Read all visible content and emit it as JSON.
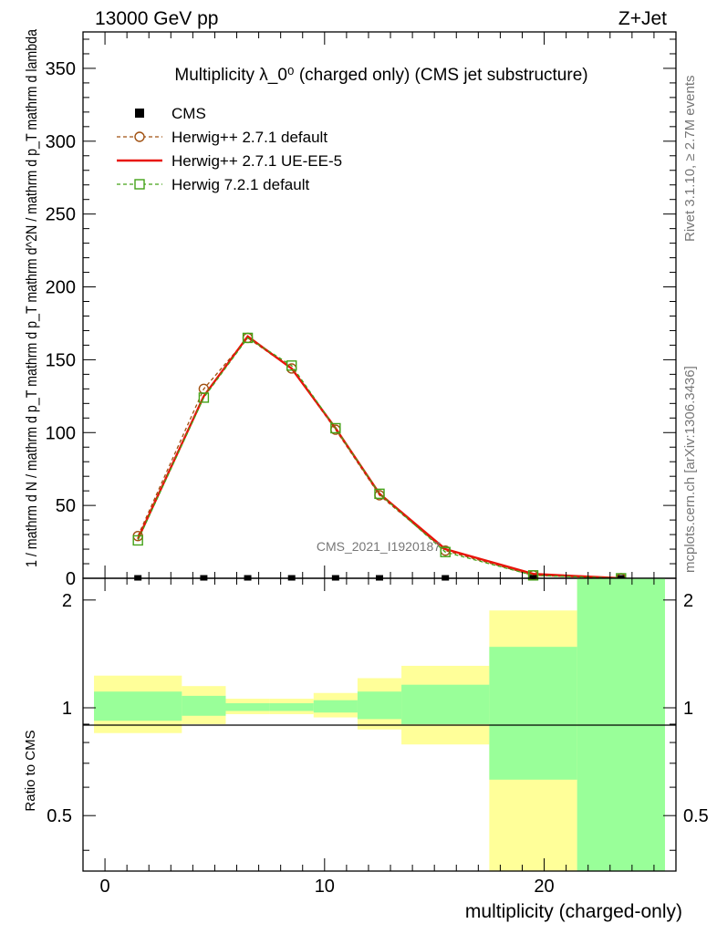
{
  "header": {
    "energy": "13000 GeV pp",
    "process": "Z+Jet"
  },
  "side": {
    "rivet": "Rivet 3.1.10, ≥ 2.7M events",
    "mcplots": "mcplots.cern.ch [arXiv:1306.3436]"
  },
  "watermark": "CMS_2021_I1920187",
  "chart_data": [
    {
      "type": "line",
      "title": "Multiplicity λ_0⁰ (charged only) (CMS jet substructure)",
      "xlabel": "multiplicity (charged-only)",
      "ylabel": "1 / mathrm d N / mathrm d p_T mathrm d p_T mathrm d^2N / mathrm d p_T mathrm d lambda",
      "xlim": [
        -1,
        26
      ],
      "ylim": [
        0,
        375
      ],
      "yticks": [
        0,
        50,
        100,
        150,
        200,
        250,
        300,
        350
      ],
      "legend_position": "top-left",
      "series": [
        {
          "name": "CMS",
          "color": "#000000",
          "marker": "square",
          "x": [
            1.5,
            4.5,
            6.5,
            8.5,
            10.5,
            12.5,
            15.5,
            19.5,
            23.5
          ],
          "y": [
            0.3,
            0.3,
            0.3,
            0.3,
            0.3,
            0.3,
            0.3,
            0.3,
            0.3
          ]
        },
        {
          "name": "Herwig++ 2.7.1 default",
          "color": "#a05010",
          "style": "dashed",
          "marker": "circle",
          "x": [
            1.5,
            4.5,
            6.5,
            8.5,
            10.5,
            12.5,
            15.5,
            19.5,
            23.5
          ],
          "y": [
            29,
            130,
            165,
            144,
            102,
            57,
            19,
            2,
            0
          ]
        },
        {
          "name": "Herwig++ 2.7.1 UE-EE-5",
          "color": "#e8140a",
          "style": "solid",
          "marker": "none",
          "x": [
            1.5,
            4.5,
            6.5,
            8.5,
            10.5,
            12.5,
            15.5,
            19.5,
            23.5
          ],
          "y": [
            27,
            125,
            166,
            144,
            103,
            58,
            20,
            3,
            0
          ]
        },
        {
          "name": "Herwig 7.2.1 default",
          "color": "#43a217",
          "style": "dashed",
          "marker": "square-open",
          "x": [
            1.5,
            4.5,
            6.5,
            8.5,
            10.5,
            12.5,
            15.5,
            19.5,
            23.5
          ],
          "y": [
            26,
            124,
            165,
            146,
            103,
            58,
            18,
            2,
            0
          ]
        }
      ]
    },
    {
      "type": "area",
      "ylabel": "Ratio to CMS",
      "xlabel": "multiplicity (charged-only)",
      "xlim": [
        -1,
        26
      ],
      "ylim": [
        0.35,
        2.3
      ],
      "xticks": [
        0,
        10,
        20
      ],
      "yticks": [
        0.5,
        1,
        2
      ],
      "reference": 1,
      "bins": [
        [
          -0.5,
          3.5
        ],
        [
          3.5,
          5.5
        ],
        [
          5.5,
          7.5
        ],
        [
          7.5,
          9.5
        ],
        [
          9.5,
          11.5
        ],
        [
          11.5,
          13.5
        ],
        [
          13.5,
          17.5
        ],
        [
          17.5,
          21.5
        ],
        [
          21.5,
          25.5
        ]
      ],
      "bands": [
        {
          "name": "inner",
          "color": "#99ff99",
          "low": [
            0.92,
            0.95,
            0.98,
            0.98,
            0.97,
            0.93,
            0.9,
            0.63,
            0.35
          ],
          "high": [
            1.11,
            1.08,
            1.03,
            1.03,
            1.05,
            1.11,
            1.16,
            1.48,
            2.3
          ]
        },
        {
          "name": "outer",
          "color": "#ffff99",
          "low": [
            0.85,
            0.9,
            0.96,
            0.96,
            0.94,
            0.87,
            0.79,
            0.35,
            0.35
          ],
          "high": [
            1.23,
            1.15,
            1.06,
            1.06,
            1.1,
            1.21,
            1.31,
            1.87,
            2.3
          ]
        }
      ]
    }
  ]
}
